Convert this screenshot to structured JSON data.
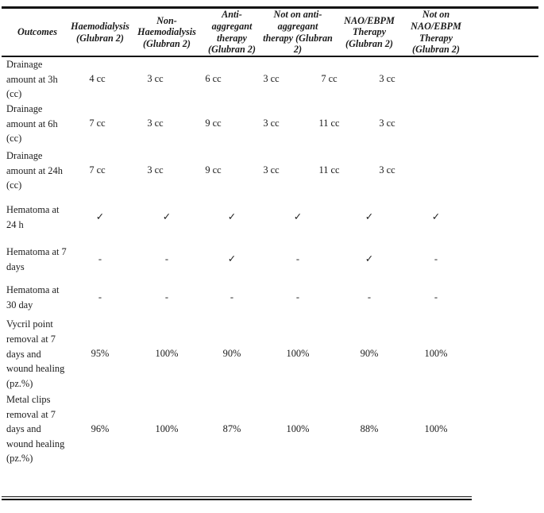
{
  "table": {
    "header": {
      "outcomes_label": "Outcomes",
      "columns": [
        "Haemodialysis (Glubran 2)",
        "Non-Haemodialysis (Glubran 2)",
        "Anti-aggregant therapy (Glubran 2)",
        "Not on anti-aggregant therapy (Glubran 2)",
        "NAO/EBPM Therapy (Glubran 2)",
        "Not on NAO/EBPM Therapy (Glubran 2)"
      ]
    },
    "rows": [
      {
        "label": "Drainage amount at 3h (cc)",
        "values": [
          "4 cc",
          "3 cc",
          "6 cc",
          "3 cc",
          "7 cc",
          "3 cc"
        ]
      },
      {
        "label": "Drainage amount at 6h (cc)",
        "values": [
          "7 cc",
          "3 cc",
          "9 cc",
          "3 cc",
          "11 cc",
          "3 cc"
        ]
      },
      {
        "label": "Drainage amount at 24h (cc)",
        "values": [
          "7 cc",
          "3 cc",
          "9 cc",
          "3 cc",
          "11 cc",
          "3 cc"
        ]
      },
      {
        "label": "Hematoma at 24 h",
        "values": [
          "✓",
          "✓",
          "✓",
          "✓",
          "✓",
          "✓"
        ]
      },
      {
        "label": "Hematoma at 7 days",
        "values": [
          "-",
          "-",
          "✓",
          "-",
          "✓",
          "-"
        ]
      },
      {
        "label": "Hematoma at 30 day",
        "values": [
          "-",
          "-",
          "-",
          "-",
          "-",
          "-"
        ]
      },
      {
        "label": "Vycril point removal at 7 days and wound healing (pz.%)",
        "values": [
          "95%",
          "100%",
          "90%",
          "100%",
          "90%",
          "100%"
        ]
      },
      {
        "label": "Metal clips removal at 7 days and wound healing (pz.%)",
        "values": [
          "96%",
          "100%",
          "87%",
          "100%",
          "88%",
          "100%"
        ]
      }
    ],
    "line_color": "#141414"
  }
}
